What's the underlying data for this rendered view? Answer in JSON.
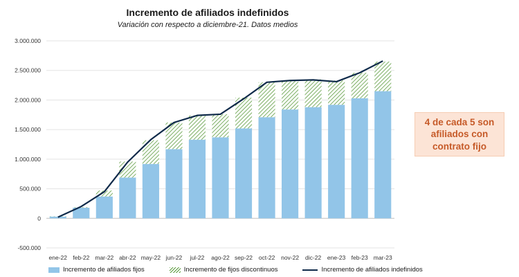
{
  "title": "Incremento de afiliados indefinidos",
  "subtitle": "Variación con respecto a diciembre-21. Datos medios",
  "callout": "4 de cada 5 son afiliados con contrato fijo",
  "legend": {
    "fijos": "Incremento de afiliados fijos",
    "discontinuos": "Incremento de fijos discontinuos",
    "indefinidos": "Incremento de afiliados indefinidos"
  },
  "colors": {
    "fijos": "#92c5e8",
    "discontinuos": "#5a9a3c",
    "line": "#0f2a4a",
    "gridline": "#e3e3e3",
    "callout_text": "#c65a28",
    "callout_bg": "#fce4d6"
  },
  "chart_data": {
    "type": "bar",
    "stacked": true,
    "categories": [
      "ene-22",
      "feb-22",
      "mar-22",
      "abr-22",
      "may-22",
      "jun-22",
      "jul-22",
      "ago-22",
      "sep-22",
      "oct-22",
      "nov-22",
      "dic-22",
      "ene-23",
      "feb-23",
      "mar-23"
    ],
    "series": [
      {
        "name": "Incremento de afiliados fijos",
        "type": "bar",
        "values": [
          30000,
          180000,
          370000,
          690000,
          920000,
          1170000,
          1330000,
          1370000,
          1520000,
          1710000,
          1840000,
          1880000,
          1920000,
          2030000,
          2150000
        ]
      },
      {
        "name": "Incremento de fijos discontinuos",
        "type": "bar",
        "values": [
          5000,
          10000,
          100000,
          270000,
          400000,
          450000,
          410000,
          390000,
          520000,
          590000,
          490000,
          470000,
          410000,
          430000,
          500000
        ]
      },
      {
        "name": "Incremento de afiliados indefinidos",
        "type": "line",
        "values": [
          20000,
          200000,
          450000,
          950000,
          1330000,
          1620000,
          1740000,
          1760000,
          2020000,
          2300000,
          2330000,
          2340000,
          2310000,
          2460000,
          2660000
        ]
      }
    ],
    "y_tick_labels": [
      "-500.000",
      "0",
      "500.000",
      "1.000.000",
      "1.500.000",
      "2.000.000",
      "2.500.000",
      "3.000.000"
    ],
    "ylim": [
      -500000,
      3000000
    ],
    "y_step": 500000,
    "xlabel": "",
    "ylabel": "",
    "grid": true,
    "legend_position": "bottom"
  }
}
